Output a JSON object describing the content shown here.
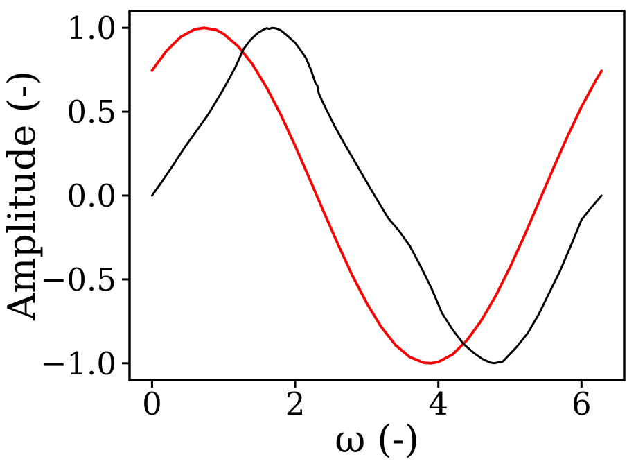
{
  "figure": {
    "background": "#ffffff",
    "axis_color": "#000000"
  },
  "chart_data": {
    "type": "line",
    "title": "",
    "xlabel": "ω (-)",
    "ylabel": "Amplitude (-)",
    "xlim": [
      -0.314,
      6.597
    ],
    "ylim": [
      -1.1,
      1.1
    ],
    "grid": false,
    "legend": null,
    "x_ticks": {
      "values": [
        0,
        2,
        4,
        6
      ],
      "labels": [
        "0",
        "2",
        "4",
        "6"
      ]
    },
    "y_ticks": {
      "values": [
        1.0,
        0.5,
        0.0,
        -0.5,
        -1.0
      ],
      "labels": [
        "1.0",
        "0.5",
        "0.0",
        "−0.5",
        "−1.0"
      ]
    },
    "series": [
      {
        "name": "red-curve",
        "color": "#ff0000",
        "line_width": 3.8,
        "points": [
          [
            0.0,
            0.745
          ],
          [
            0.2,
            0.862
          ],
          [
            0.4,
            0.946
          ],
          [
            0.6,
            0.992
          ],
          [
            0.73,
            1.0
          ],
          [
            0.9,
            0.987
          ],
          [
            1.0,
            0.964
          ],
          [
            1.2,
            0.891
          ],
          [
            1.4,
            0.785
          ],
          [
            1.6,
            0.645
          ],
          [
            1.8,
            0.481
          ],
          [
            2.0,
            0.296
          ],
          [
            2.2,
            0.101
          ],
          [
            2.4,
            -0.098
          ],
          [
            2.6,
            -0.293
          ],
          [
            2.8,
            -0.478
          ],
          [
            3.0,
            -0.642
          ],
          [
            3.2,
            -0.782
          ],
          [
            3.4,
            -0.891
          ],
          [
            3.6,
            -0.963
          ],
          [
            3.8,
            -0.997
          ],
          [
            3.9,
            -1.0
          ],
          [
            4.0,
            -0.992
          ],
          [
            4.2,
            -0.947
          ],
          [
            4.4,
            -0.863
          ],
          [
            4.6,
            -0.745
          ],
          [
            4.8,
            -0.6
          ],
          [
            5.0,
            -0.429
          ],
          [
            5.2,
            -0.241
          ],
          [
            5.4,
            -0.043
          ],
          [
            5.6,
            0.156
          ],
          [
            5.8,
            0.349
          ],
          [
            6.0,
            0.529
          ],
          [
            6.2,
            0.687
          ],
          [
            6.28,
            0.743
          ]
        ]
      },
      {
        "name": "black-curve",
        "color": "#000000",
        "line_width": 3.0,
        "points": [
          [
            0.0,
            0.0
          ],
          [
            0.15,
            0.09
          ],
          [
            0.3,
            0.185
          ],
          [
            0.46,
            0.29
          ],
          [
            0.62,
            0.385
          ],
          [
            0.78,
            0.48
          ],
          [
            0.95,
            0.6
          ],
          [
            1.05,
            0.675
          ],
          [
            1.17,
            0.77
          ],
          [
            1.28,
            0.875
          ],
          [
            1.38,
            0.93
          ],
          [
            1.48,
            0.97
          ],
          [
            1.56,
            0.99
          ],
          [
            1.6,
            0.998
          ],
          [
            1.64,
            0.994
          ],
          [
            1.68,
            1.0
          ],
          [
            1.73,
            0.997
          ],
          [
            1.8,
            0.985
          ],
          [
            1.9,
            0.95
          ],
          [
            2.0,
            0.91
          ],
          [
            2.07,
            0.87
          ],
          [
            2.15,
            0.82
          ],
          [
            2.22,
            0.75
          ],
          [
            2.28,
            0.675
          ],
          [
            2.31,
            0.655
          ],
          [
            2.33,
            0.607
          ],
          [
            2.42,
            0.525
          ],
          [
            2.55,
            0.415
          ],
          [
            2.7,
            0.3
          ],
          [
            2.85,
            0.19
          ],
          [
            3.0,
            0.08
          ],
          [
            3.11,
            0.0
          ],
          [
            3.3,
            -0.135
          ],
          [
            3.45,
            -0.21
          ],
          [
            3.6,
            -0.3
          ],
          [
            3.75,
            -0.42
          ],
          [
            3.9,
            -0.55
          ],
          [
            4.05,
            -0.7
          ],
          [
            4.2,
            -0.8
          ],
          [
            4.35,
            -0.885
          ],
          [
            4.5,
            -0.94
          ],
          [
            4.62,
            -0.975
          ],
          [
            4.72,
            -0.995
          ],
          [
            4.78,
            -1.0
          ],
          [
            4.84,
            -0.994
          ],
          [
            4.9,
            -0.99
          ],
          [
            5.0,
            -0.945
          ],
          [
            5.1,
            -0.9
          ],
          [
            5.25,
            -0.82
          ],
          [
            5.4,
            -0.71
          ],
          [
            5.55,
            -0.58
          ],
          [
            5.7,
            -0.45
          ],
          [
            5.86,
            -0.29
          ],
          [
            6.0,
            -0.145
          ],
          [
            6.1,
            -0.09
          ],
          [
            6.2,
            -0.04
          ],
          [
            6.28,
            0.0
          ]
        ]
      }
    ]
  }
}
